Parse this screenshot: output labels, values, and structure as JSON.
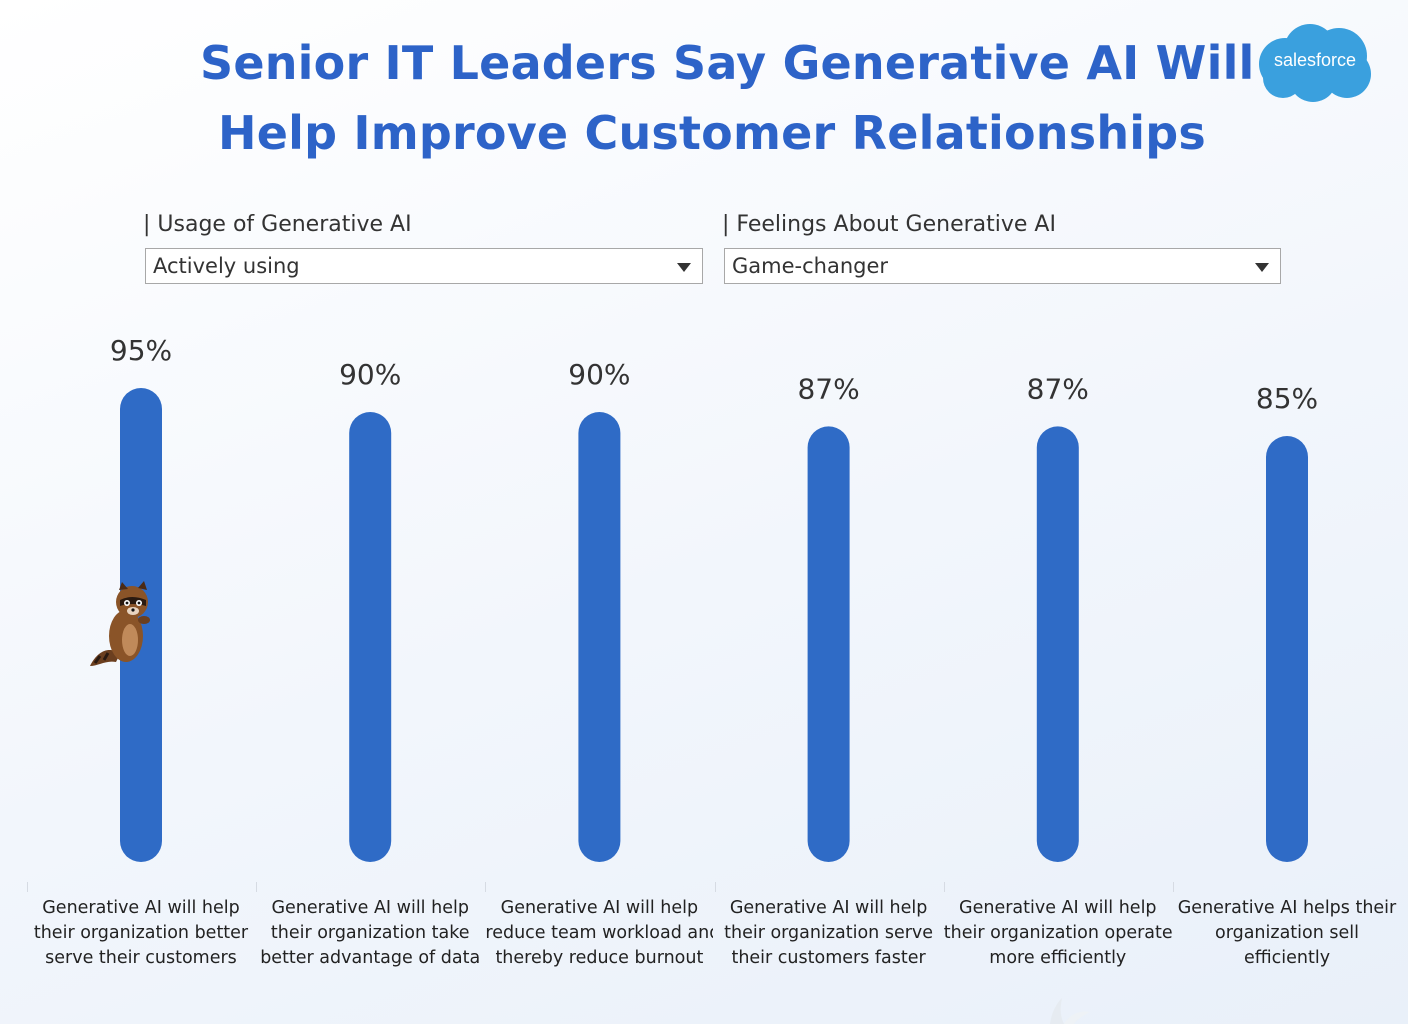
{
  "title": {
    "line1": "Senior IT Leaders Say Generative AI Will",
    "line2": "Help Improve Customer Relationships"
  },
  "logo": {
    "text": "salesforce",
    "color": "#3aa0de"
  },
  "filters": {
    "usage": {
      "label": "| Usage of Generative AI",
      "selected": "Actively using"
    },
    "feelings": {
      "label": "| Feelings About Generative AI",
      "selected": "Game-changer"
    }
  },
  "colors": {
    "bar": "#2f6bc6",
    "title": "#2d63c8"
  },
  "icons": {
    "mascot": "raccoon-mascot-icon",
    "dropdown": "chevron-down-icon"
  },
  "chart_data": {
    "type": "bar",
    "categories": [
      [
        "Generative AI will help",
        "their organization better",
        "serve their customers"
      ],
      [
        "Generative AI will help",
        "their organization take",
        "better advantage of data"
      ],
      [
        "Generative AI will help",
        "reduce team workload and",
        "thereby reduce burnout"
      ],
      [
        "Generative AI will help",
        "their organization serve",
        "their customers faster"
      ],
      [
        "Generative AI will help",
        "their organization operate",
        "more efficiently"
      ],
      [
        "Generative AI helps their",
        "organization sell",
        "efficiently"
      ]
    ],
    "values": [
      95,
      90,
      90,
      87,
      87,
      85
    ],
    "data_labels": [
      "95%",
      "90%",
      "90%",
      "87%",
      "87%",
      "85%"
    ],
    "ylim": [
      0,
      100
    ],
    "grid": false
  }
}
